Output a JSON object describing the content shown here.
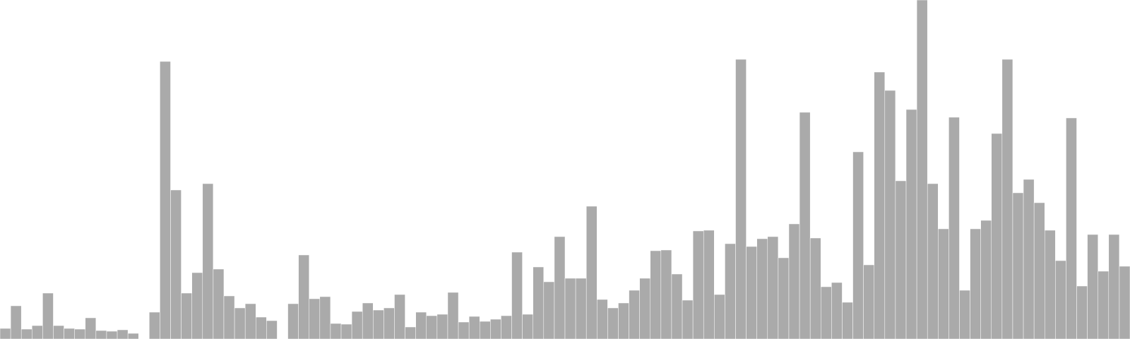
{
  "chart_data": {
    "type": "bar",
    "title": "",
    "xlabel": "",
    "ylabel": "",
    "ylim": [
      0,
      480
    ],
    "grid": false,
    "legend": "none",
    "bar_color": "#aaaaaa",
    "values": [
      15,
      47,
      14,
      19,
      65,
      19,
      15,
      14,
      30,
      12,
      11,
      13,
      8,
      0,
      38,
      393,
      211,
      65,
      94,
      220,
      99,
      61,
      44,
      50,
      31,
      26,
      0,
      50,
      119,
      57,
      60,
      22,
      21,
      39,
      51,
      41,
      44,
      63,
      17,
      38,
      33,
      35,
      66,
      24,
      32,
      25,
      28,
      33,
      123,
      35,
      102,
      81,
      145,
      86,
      86,
      188,
      56,
      44,
      51,
      69,
      86,
      125,
      126,
      92,
      55,
      153,
      154,
      63,
      135,
      396,
      131,
      142,
      145,
      115,
      163,
      321,
      143,
      74,
      80,
      52,
      265,
      105,
      378,
      352,
      224,
      325,
      490,
      220,
      156,
      314,
      69,
      156,
      168,
      291,
      396,
      207,
      226,
      193,
      154,
      111,
      313,
      75,
      148,
      96,
      148,
      103
    ]
  }
}
